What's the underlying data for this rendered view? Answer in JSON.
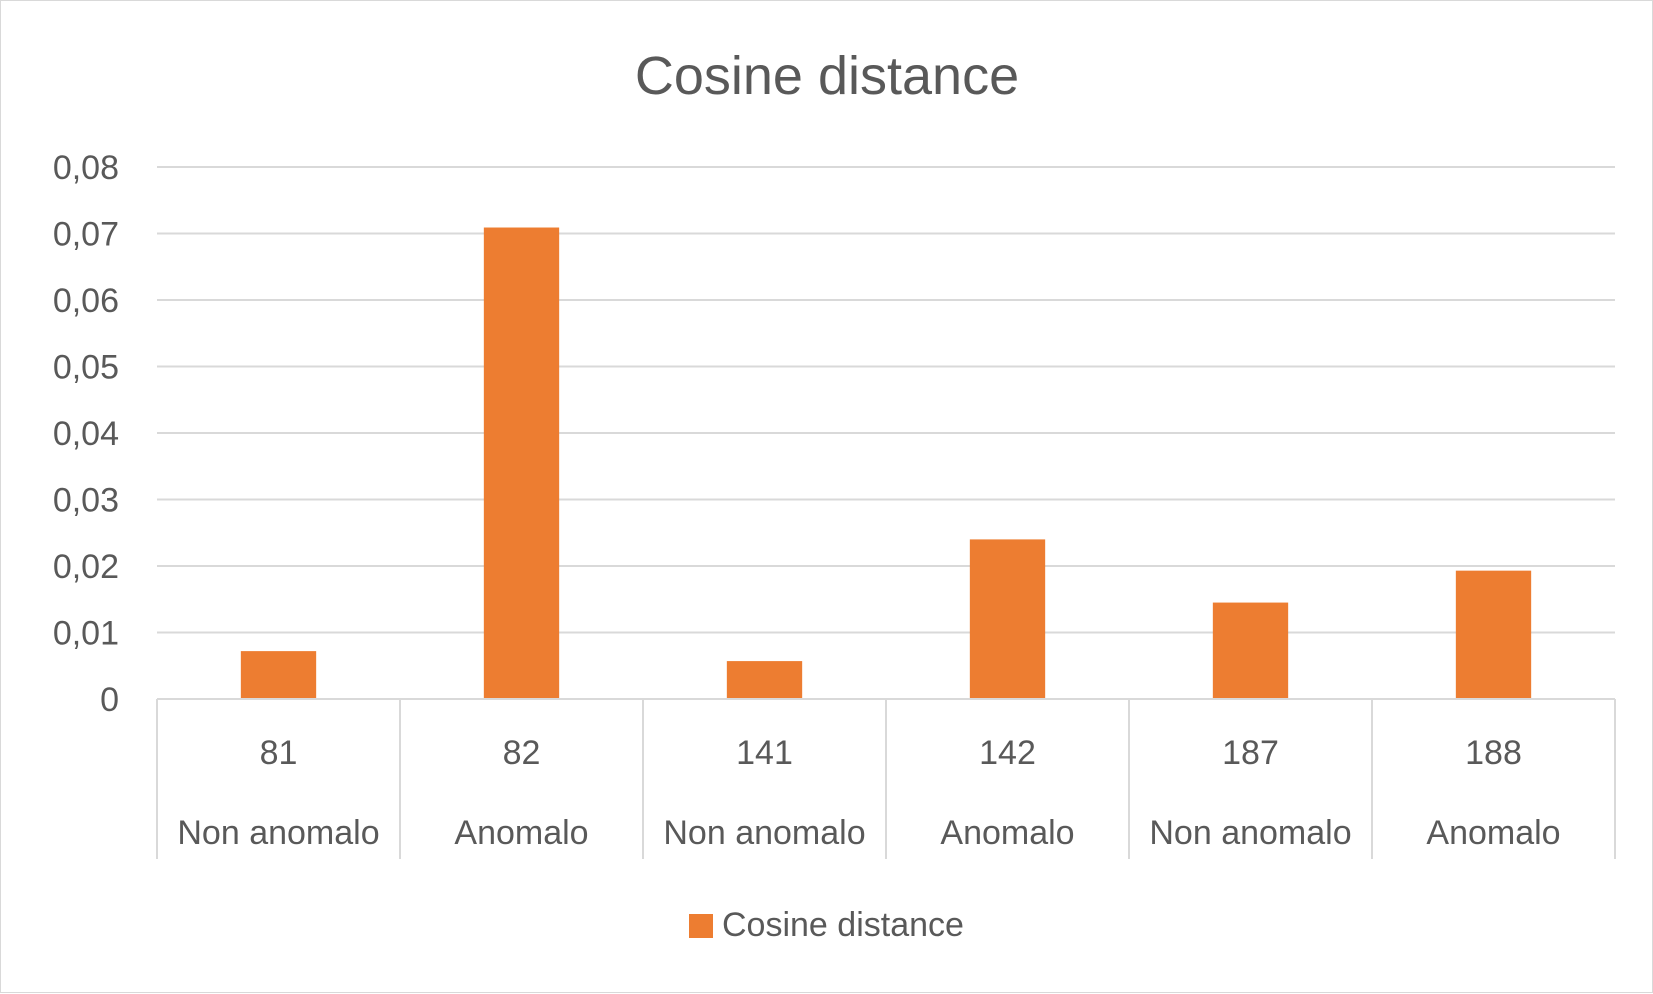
{
  "chart_data": {
    "type": "bar",
    "title": "Cosine distance",
    "categories": [
      [
        "81",
        "Non anomalo"
      ],
      [
        "82",
        "Anomalo"
      ],
      [
        "141",
        "Non anomalo"
      ],
      [
        "142",
        "Anomalo"
      ],
      [
        "187",
        "Non anomalo"
      ],
      [
        "188",
        "Anomalo"
      ]
    ],
    "series": [
      {
        "name": "Cosine distance",
        "values": [
          0.0072,
          0.0709,
          0.0057,
          0.024,
          0.0145,
          0.0193
        ]
      }
    ],
    "ylim": [
      0,
      0.08
    ],
    "yticks": [
      "0",
      "0,01",
      "0,02",
      "0,03",
      "0,04",
      "0,05",
      "0,06",
      "0,07",
      "0,08"
    ],
    "xlabel": "",
    "ylabel": "",
    "grid": true,
    "legend": "bottom",
    "colors": {
      "bar": "#ED7D31",
      "grid": "#d9d9d9",
      "text": "#595959"
    }
  }
}
